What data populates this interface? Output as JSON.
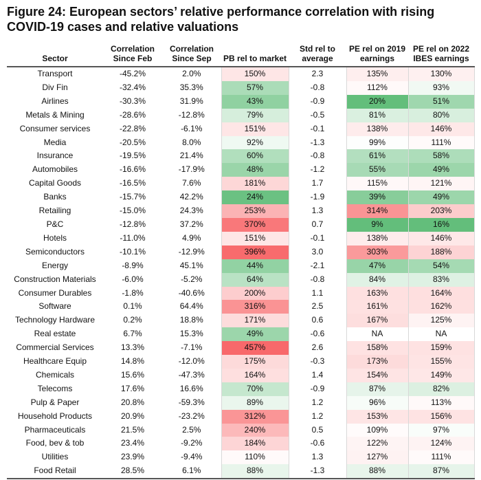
{
  "title": "Figure 24: European sectors’ relative performance correlation with rising COVID-19 cases and relative valuations",
  "headers": {
    "sector": "Sector",
    "corr_feb": "Correlation Since Feb",
    "corr_sep": "Correlation Since Sep",
    "pb": "PB rel to market",
    "std": "Std rel to average",
    "pe2019": "PE rel on 2019 earnings",
    "pe2022": "PE rel on 2022 IBES earnings"
  },
  "rows": [
    {
      "sector": "Transport",
      "corr_feb": "-45.2%",
      "corr_sep": "2.0%",
      "pb": "150%",
      "std": "2.3",
      "pe2019": "135%",
      "pe2022": "130%"
    },
    {
      "sector": "Div Fin",
      "corr_feb": "-32.4%",
      "corr_sep": "35.3%",
      "pb": "57%",
      "std": "-0.8",
      "pe2019": "112%",
      "pe2022": "93%"
    },
    {
      "sector": "Airlines",
      "corr_feb": "-30.3%",
      "corr_sep": "31.9%",
      "pb": "43%",
      "std": "-0.9",
      "pe2019": "20%",
      "pe2022": "51%"
    },
    {
      "sector": "Metals & Mining",
      "corr_feb": "-28.6%",
      "corr_sep": "-12.8%",
      "pb": "79%",
      "std": "-0.5",
      "pe2019": "81%",
      "pe2022": "80%"
    },
    {
      "sector": "Consumer services",
      "corr_feb": "-22.8%",
      "corr_sep": "-6.1%",
      "pb": "151%",
      "std": "-0.1",
      "pe2019": "138%",
      "pe2022": "146%"
    },
    {
      "sector": "Media",
      "corr_feb": "-20.5%",
      "corr_sep": "8.0%",
      "pb": "92%",
      "std": "-1.3",
      "pe2019": "99%",
      "pe2022": "111%"
    },
    {
      "sector": "Insurance",
      "corr_feb": "-19.5%",
      "corr_sep": "21.4%",
      "pb": "60%",
      "std": "-0.8",
      "pe2019": "61%",
      "pe2022": "58%"
    },
    {
      "sector": "Automobiles",
      "corr_feb": "-16.6%",
      "corr_sep": "-17.9%",
      "pb": "48%",
      "std": "-1.2",
      "pe2019": "55%",
      "pe2022": "49%"
    },
    {
      "sector": "Capital Goods",
      "corr_feb": "-16.5%",
      "corr_sep": "7.6%",
      "pb": "181%",
      "std": "1.7",
      "pe2019": "115%",
      "pe2022": "121%"
    },
    {
      "sector": "Banks",
      "corr_feb": "-15.7%",
      "corr_sep": "42.2%",
      "pb": "24%",
      "std": "-1.9",
      "pe2019": "39%",
      "pe2022": "49%"
    },
    {
      "sector": "Retailing",
      "corr_feb": "-15.0%",
      "corr_sep": "24.3%",
      "pb": "253%",
      "std": "1.3",
      "pe2019": "314%",
      "pe2022": "203%"
    },
    {
      "sector": "P&C",
      "corr_feb": "-12.8%",
      "corr_sep": "37.2%",
      "pb": "370%",
      "std": "0.7",
      "pe2019": "9%",
      "pe2022": "16%"
    },
    {
      "sector": "Hotels",
      "corr_feb": "-11.0%",
      "corr_sep": "4.9%",
      "pb": "151%",
      "std": "-0.1",
      "pe2019": "138%",
      "pe2022": "146%"
    },
    {
      "sector": "Semiconductors",
      "corr_feb": "-10.1%",
      "corr_sep": "-12.9%",
      "pb": "396%",
      "std": "3.0",
      "pe2019": "303%",
      "pe2022": "188%"
    },
    {
      "sector": "Energy",
      "corr_feb": "-8.9%",
      "corr_sep": "45.1%",
      "pb": "44%",
      "std": "-2.1",
      "pe2019": "47%",
      "pe2022": "54%"
    },
    {
      "sector": "Construction Materials",
      "corr_feb": "-6.0%",
      "corr_sep": "-5.2%",
      "pb": "64%",
      "std": "-0.8",
      "pe2019": "84%",
      "pe2022": "83%"
    },
    {
      "sector": "Consumer Durables",
      "corr_feb": "-1.8%",
      "corr_sep": "-40.6%",
      "pb": "200%",
      "std": "1.1",
      "pe2019": "163%",
      "pe2022": "164%"
    },
    {
      "sector": "Software",
      "corr_feb": "0.1%",
      "corr_sep": "64.4%",
      "pb": "316%",
      "std": "2.5",
      "pe2019": "161%",
      "pe2022": "162%"
    },
    {
      "sector": "Technology Hardware",
      "corr_feb": "0.2%",
      "corr_sep": "18.8%",
      "pb": "171%",
      "std": "0.6",
      "pe2019": "167%",
      "pe2022": "125%"
    },
    {
      "sector": "Real estate",
      "corr_feb": "6.7%",
      "corr_sep": "15.3%",
      "pb": "49%",
      "std": "-0.6",
      "pe2019": "NA",
      "pe2022": "NA"
    },
    {
      "sector": "Commercial Services",
      "corr_feb": "13.3%",
      "corr_sep": "-7.1%",
      "pb": "457%",
      "std": "2.6",
      "pe2019": "158%",
      "pe2022": "159%"
    },
    {
      "sector": "Healthcare Equip",
      "corr_feb": "14.8%",
      "corr_sep": "-12.0%",
      "pb": "175%",
      "std": "-0.3",
      "pe2019": "173%",
      "pe2022": "155%"
    },
    {
      "sector": "Chemicals",
      "corr_feb": "15.6%",
      "corr_sep": "-47.3%",
      "pb": "164%",
      "std": "1.4",
      "pe2019": "154%",
      "pe2022": "149%"
    },
    {
      "sector": "Telecoms",
      "corr_feb": "17.6%",
      "corr_sep": "16.6%",
      "pb": "70%",
      "std": "-0.9",
      "pe2019": "87%",
      "pe2022": "82%"
    },
    {
      "sector": "Pulp & Paper",
      "corr_feb": "20.8%",
      "corr_sep": "-59.3%",
      "pb": "89%",
      "std": "1.2",
      "pe2019": "96%",
      "pe2022": "113%"
    },
    {
      "sector": "Household Products",
      "corr_feb": "20.9%",
      "corr_sep": "-23.2%",
      "pb": "312%",
      "std": "1.2",
      "pe2019": "153%",
      "pe2022": "156%"
    },
    {
      "sector": "Pharmaceuticals",
      "corr_feb": "21.5%",
      "corr_sep": "2.5%",
      "pb": "240%",
      "std": "0.5",
      "pe2019": "109%",
      "pe2022": "97%"
    },
    {
      "sector": "Food, bev & tob",
      "corr_feb": "23.4%",
      "corr_sep": "-9.2%",
      "pb": "184%",
      "std": "-0.6",
      "pe2019": "122%",
      "pe2022": "124%"
    },
    {
      "sector": "Utilities",
      "corr_feb": "23.9%",
      "corr_sep": "-9.4%",
      "pb": "110%",
      "std": "1.3",
      "pe2019": "127%",
      "pe2022": "111%"
    },
    {
      "sector": "Food Retail",
      "corr_feb": "28.5%",
      "corr_sep": "6.1%",
      "pb": "88%",
      "std": "-1.3",
      "pe2019": "88%",
      "pe2022": "87%"
    }
  ]
}
